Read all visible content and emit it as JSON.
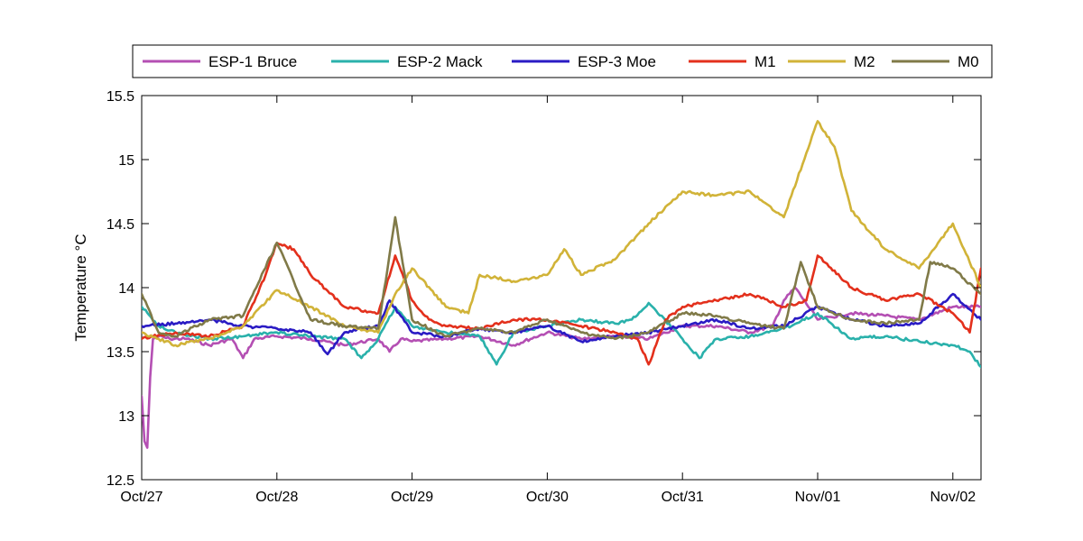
{
  "chart_data": {
    "type": "line",
    "title": "",
    "xlabel": "",
    "ylabel": "Temperature °C",
    "xlim": [
      "Oct/27",
      "Nov/02 05:00"
    ],
    "ylim": [
      12.5,
      15.5
    ],
    "x_tick_labels": [
      "Oct/27",
      "Oct/28",
      "Oct/29",
      "Oct/30",
      "Oct/31",
      "Nov/01",
      "Nov/02"
    ],
    "y_tick_labels": [
      "12.5",
      "13",
      "13.5",
      "14",
      "14.5",
      "15",
      "15.5"
    ],
    "grid": false,
    "legend_position": "top",
    "series": [
      {
        "name": "ESP-1 Bruce",
        "color": "#b44fb3",
        "x": [
          "Oct/27 00:00",
          "Oct/27 00:30",
          "Oct/27 01:00",
          "Oct/27 01:30",
          "Oct/27 02:00",
          "Oct/27 03:00",
          "Oct/27 05:00",
          "Oct/27 08:00",
          "Oct/27 12:00",
          "Oct/27 16:00",
          "Oct/27 18:00",
          "Oct/27 20:00",
          "Oct/28 00:00",
          "Oct/28 06:00",
          "Oct/28 12:00",
          "Oct/28 18:00",
          "Oct/28 20:00",
          "Oct/28 22:00",
          "Oct/29 00:00",
          "Oct/29 06:00",
          "Oct/29 12:00",
          "Oct/29 18:00",
          "Oct/30 00:00",
          "Oct/30 06:00",
          "Oct/30 12:00",
          "Oct/30 18:00",
          "Oct/31 00:00",
          "Oct/31 06:00",
          "Oct/31 12:00",
          "Oct/31 16:00",
          "Oct/31 18:00",
          "Oct/31 20:00",
          "Nov/01 00:00",
          "Nov/01 06:00",
          "Nov/01 12:00",
          "Nov/01 18:00",
          "Nov/02 00:00",
          "Nov/02 05:00"
        ],
        "values": [
          13.15,
          12.8,
          12.75,
          13.3,
          13.6,
          13.62,
          13.6,
          13.6,
          13.55,
          13.6,
          13.45,
          13.6,
          13.62,
          13.6,
          13.55,
          13.6,
          13.5,
          13.6,
          13.58,
          13.6,
          13.62,
          13.55,
          13.65,
          13.6,
          13.62,
          13.6,
          13.7,
          13.7,
          13.65,
          13.7,
          13.9,
          14.0,
          13.75,
          13.8,
          13.78,
          13.75,
          13.85,
          13.85
        ]
      },
      {
        "name": "ESP-2 Mack",
        "color": "#2ab1ab",
        "x": [
          "Oct/27 00:00",
          "Oct/27 03:00",
          "Oct/27 06:00",
          "Oct/27 12:00",
          "Oct/27 18:00",
          "Oct/28 00:00",
          "Oct/28 06:00",
          "Oct/28 12:00",
          "Oct/28 15:00",
          "Oct/28 18:00",
          "Oct/28 21:00",
          "Oct/29 00:00",
          "Oct/29 06:00",
          "Oct/29 12:00",
          "Oct/29 15:00",
          "Oct/29 18:00",
          "Oct/30 00:00",
          "Oct/30 06:00",
          "Oct/30 12:00",
          "Oct/30 15:00",
          "Oct/30 18:00",
          "Oct/31 00:00",
          "Oct/31 03:00",
          "Oct/31 06:00",
          "Oct/31 12:00",
          "Oct/31 18:00",
          "Nov/01 00:00",
          "Nov/01 06:00",
          "Nov/01 12:00",
          "Nov/01 18:00",
          "Nov/02 00:00",
          "Nov/02 03:00",
          "Nov/02 05:00"
        ],
        "values": [
          13.85,
          13.7,
          13.65,
          13.6,
          13.62,
          13.65,
          13.62,
          13.6,
          13.45,
          13.6,
          13.85,
          13.7,
          13.65,
          13.62,
          13.4,
          13.65,
          13.7,
          13.75,
          13.72,
          13.75,
          13.88,
          13.6,
          13.45,
          13.6,
          13.62,
          13.68,
          13.8,
          13.6,
          13.62,
          13.58,
          13.55,
          13.5,
          13.38
        ]
      },
      {
        "name": "ESP-3 Moe",
        "color": "#2a1bc4",
        "x": [
          "Oct/27 00:00",
          "Oct/27 06:00",
          "Oct/27 12:00",
          "Oct/27 18:00",
          "Oct/28 00:00",
          "Oct/28 06:00",
          "Oct/28 09:00",
          "Oct/28 12:00",
          "Oct/28 18:00",
          "Oct/28 20:00",
          "Oct/29 00:00",
          "Oct/29 06:00",
          "Oct/29 12:00",
          "Oct/29 18:00",
          "Oct/30 00:00",
          "Oct/30 06:00",
          "Oct/30 12:00",
          "Oct/30 18:00",
          "Oct/31 00:00",
          "Oct/31 06:00",
          "Oct/31 12:00",
          "Oct/31 18:00",
          "Nov/01 00:00",
          "Nov/01 06:00",
          "Nov/01 12:00",
          "Nov/01 18:00",
          "Nov/02 00:00",
          "Nov/02 05:00"
        ],
        "values": [
          13.7,
          13.72,
          13.75,
          13.7,
          13.68,
          13.65,
          13.48,
          13.65,
          13.7,
          13.9,
          13.65,
          13.62,
          13.68,
          13.65,
          13.7,
          13.58,
          13.62,
          13.65,
          13.7,
          13.75,
          13.68,
          13.7,
          13.85,
          13.75,
          13.7,
          13.72,
          13.95,
          13.75
        ]
      },
      {
        "name": "M1",
        "color": "#e3301c",
        "x": [
          "Oct/27 00:00",
          "Oct/27 06:00",
          "Oct/27 12:00",
          "Oct/27 18:00",
          "Oct/27 22:00",
          "Oct/28 00:00",
          "Oct/28 03:00",
          "Oct/28 06:00",
          "Oct/28 12:00",
          "Oct/28 18:00",
          "Oct/28 21:00",
          "Oct/29 00:00",
          "Oct/29 03:00",
          "Oct/29 06:00",
          "Oct/29 12:00",
          "Oct/29 18:00",
          "Oct/30 00:00",
          "Oct/30 06:00",
          "Oct/30 12:00",
          "Oct/30 16:00",
          "Oct/30 18:00",
          "Oct/30 21:00",
          "Oct/31 00:00",
          "Oct/31 06:00",
          "Oct/31 12:00",
          "Oct/31 18:00",
          "Oct/31 22:00",
          "Nov/01 00:00",
          "Nov/01 06:00",
          "Nov/01 12:00",
          "Nov/01 18:00",
          "Nov/02 00:00",
          "Nov/02 03:00",
          "Nov/02 05:00"
        ],
        "values": [
          13.6,
          13.65,
          13.62,
          13.7,
          14.1,
          14.35,
          14.3,
          14.1,
          13.85,
          13.8,
          14.25,
          13.9,
          13.75,
          13.7,
          13.68,
          13.75,
          13.75,
          13.7,
          13.65,
          13.6,
          13.4,
          13.75,
          13.85,
          13.9,
          13.95,
          13.85,
          13.9,
          14.25,
          14.0,
          13.9,
          13.95,
          13.8,
          13.65,
          14.15
        ]
      },
      {
        "name": "M2",
        "color": "#d1b338",
        "x": [
          "Oct/27 00:00",
          "Oct/27 06:00",
          "Oct/27 12:00",
          "Oct/27 18:00",
          "Oct/28 00:00",
          "Oct/28 06:00",
          "Oct/28 12:00",
          "Oct/28 18:00",
          "Oct/28 21:00",
          "Oct/29 00:00",
          "Oct/29 06:00",
          "Oct/29 10:00",
          "Oct/29 12:00",
          "Oct/29 18:00",
          "Oct/30 00:00",
          "Oct/30 03:00",
          "Oct/30 06:00",
          "Oct/30 12:00",
          "Oct/30 18:00",
          "Oct/31 00:00",
          "Oct/31 06:00",
          "Oct/31 12:00",
          "Oct/31 18:00",
          "Nov/01 00:00",
          "Nov/01 03:00",
          "Nov/01 06:00",
          "Nov/01 12:00",
          "Nov/01 18:00",
          "Nov/02 00:00",
          "Nov/02 05:00"
        ],
        "values": [
          13.65,
          13.55,
          13.6,
          13.7,
          13.98,
          13.85,
          13.7,
          13.65,
          13.95,
          14.15,
          13.85,
          13.8,
          14.1,
          14.05,
          14.1,
          14.3,
          14.1,
          14.22,
          14.5,
          14.75,
          14.72,
          14.75,
          14.55,
          15.3,
          15.1,
          14.6,
          14.3,
          14.15,
          14.5,
          14.0
        ]
      },
      {
        "name": "M0",
        "color": "#807a48",
        "x": [
          "Oct/27 00:00",
          "Oct/27 03:00",
          "Oct/27 06:00",
          "Oct/27 12:00",
          "Oct/27 18:00",
          "Oct/28 00:00",
          "Oct/28 03:00",
          "Oct/28 06:00",
          "Oct/28 12:00",
          "Oct/28 18:00",
          "Oct/28 21:00",
          "Oct/29 00:00",
          "Oct/29 06:00",
          "Oct/29 12:00",
          "Oct/29 18:00",
          "Oct/30 00:00",
          "Oct/30 06:00",
          "Oct/30 12:00",
          "Oct/30 18:00",
          "Oct/31 00:00",
          "Oct/31 06:00",
          "Oct/31 12:00",
          "Oct/31 18:00",
          "Oct/31 21:00",
          "Nov/01 00:00",
          "Nov/01 06:00",
          "Nov/01 12:00",
          "Nov/01 18:00",
          "Nov/01 20:00",
          "Nov/02 00:00",
          "Nov/02 05:00"
        ],
        "values": [
          13.95,
          13.65,
          13.62,
          13.75,
          13.78,
          14.35,
          14.05,
          13.75,
          13.7,
          13.68,
          14.55,
          13.75,
          13.62,
          13.68,
          13.65,
          13.75,
          13.65,
          13.6,
          13.65,
          13.8,
          13.78,
          13.72,
          13.68,
          14.2,
          13.85,
          13.75,
          13.72,
          13.75,
          14.2,
          14.15,
          13.95
        ]
      }
    ]
  }
}
